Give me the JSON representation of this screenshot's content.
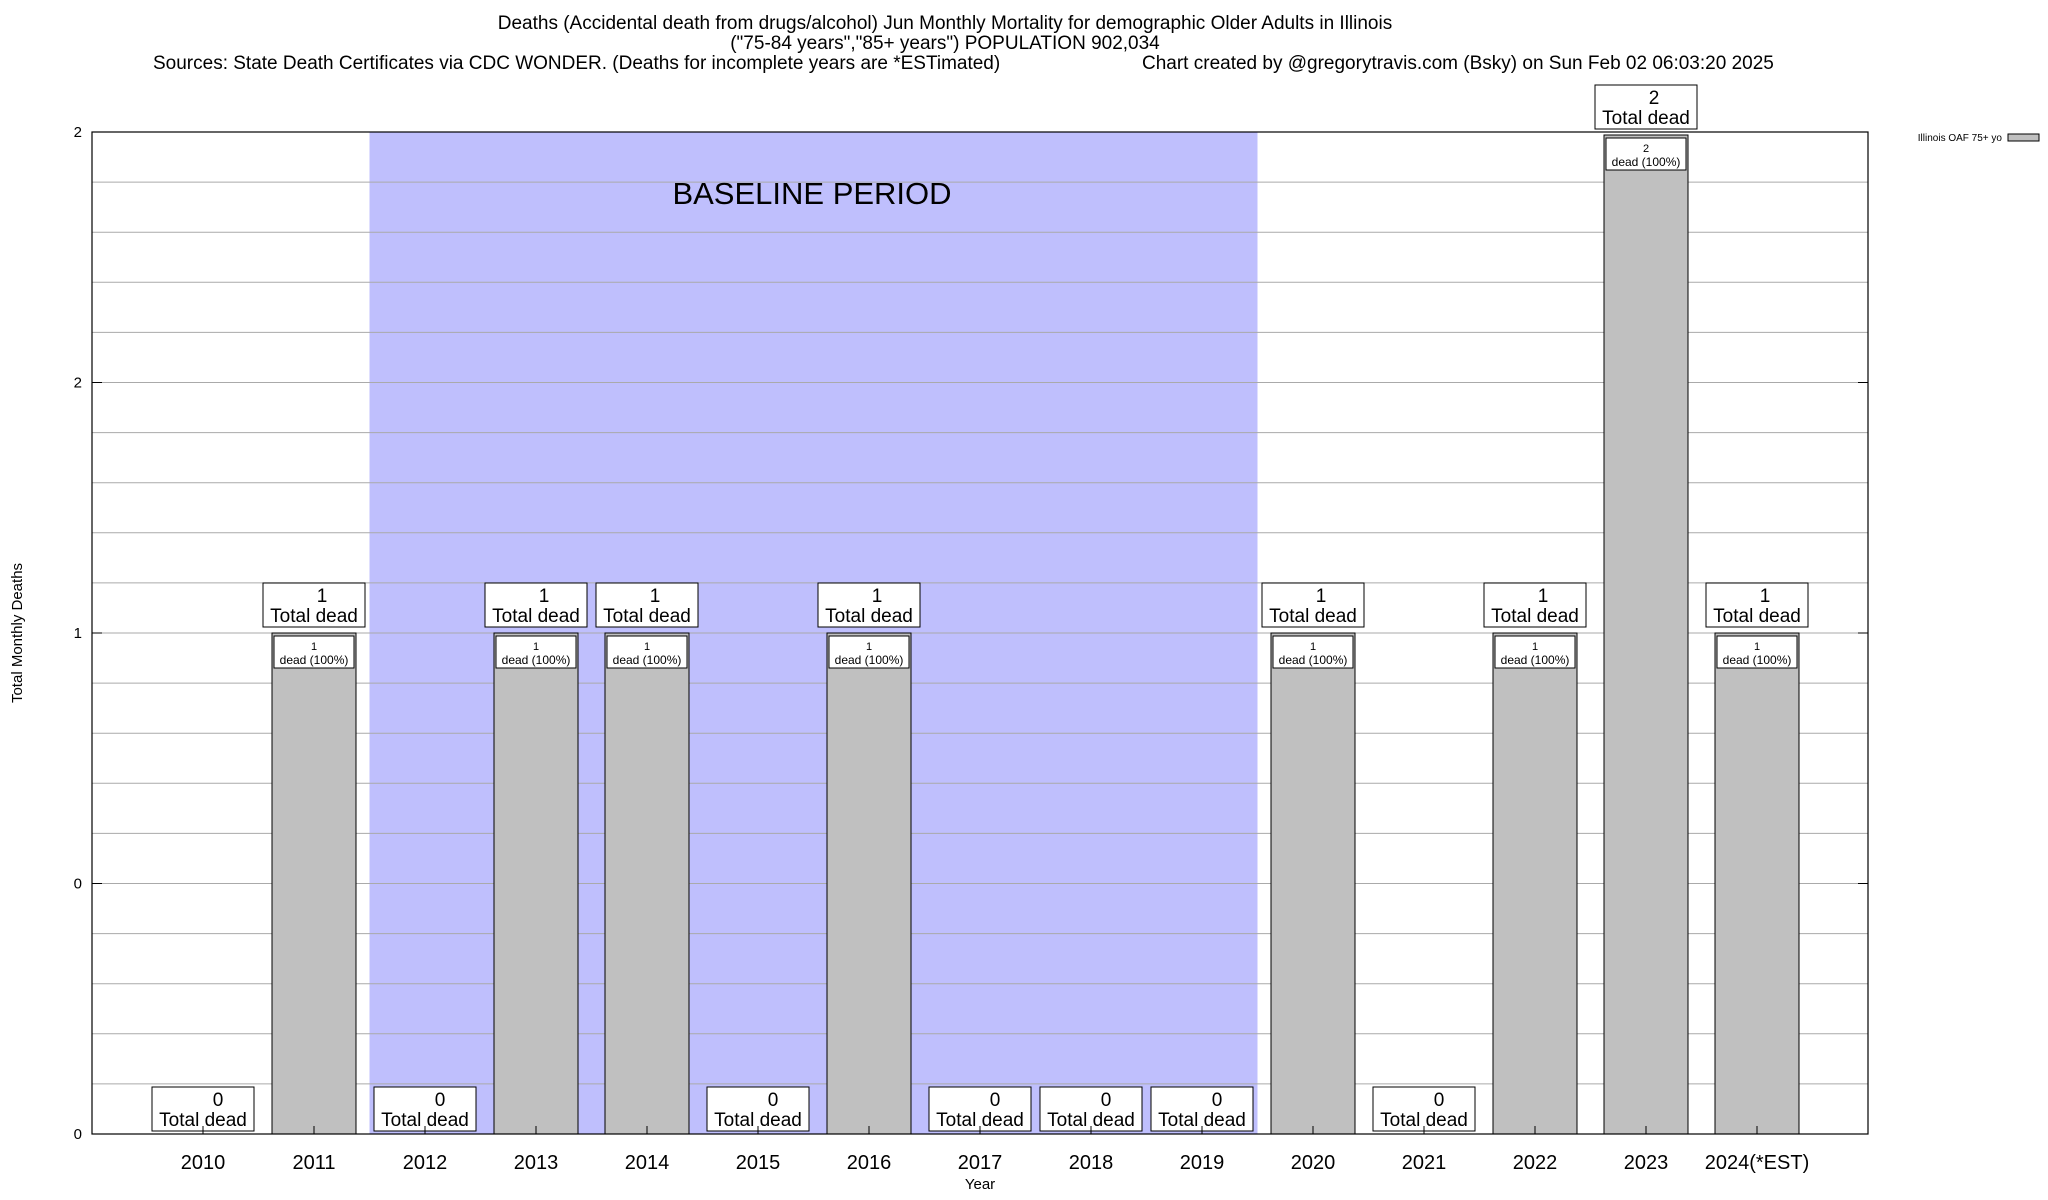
{
  "header": {
    "title_line1": "Deaths (Accidental death from drugs/alcohol) Jun Monthly Mortality for demographic Older Adults in Illinois",
    "title_line2": "(\"75-84 years\",\"85+ years\") POPULATION 902,034",
    "sources": "Sources: State Death Certificates via CDC WONDER. (Deaths for incomplete years are *ESTimated)",
    "credit": "Chart created by @gregorytravis.com (Bsky) on Sun Feb 02 06:03:20 2025"
  },
  "chart_data": {
    "type": "bar",
    "xlabel": "Year",
    "ylabel": "Total Monthly Deaths",
    "ylim": [
      0,
      2
    ],
    "y_tick_labels": [
      "0",
      "0",
      "1",
      "2",
      "2"
    ],
    "grid": true,
    "legend": {
      "position": "top-right",
      "entries": [
        "Illinois OAF 75+ yo"
      ]
    },
    "baseline": {
      "label": "BASELINE PERIOD",
      "from": "2012",
      "to": "2019",
      "color": "#bfbffd"
    },
    "bar_color": "#c0c0c0",
    "categories": [
      "2010",
      "2011",
      "2012",
      "2013",
      "2014",
      "2015",
      "2016",
      "2017",
      "2018",
      "2019",
      "2020",
      "2021",
      "2022",
      "2023",
      "2024(*EST)"
    ],
    "series": [
      {
        "name": "Illinois OAF 75+ yo",
        "values": [
          0,
          1,
          0,
          1,
          1,
          0,
          1,
          0,
          0,
          0,
          1,
          0,
          1,
          2,
          1
        ]
      }
    ],
    "total_label_suffix": "Total dead",
    "inner_label_suffix": "dead (100%)"
  }
}
